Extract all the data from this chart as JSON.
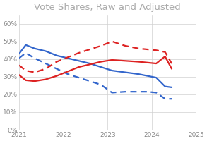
{
  "title": "Vote Shares, Raw and Adjusted",
  "title_fontsize": 9.5,
  "title_color": "#aaaaaa",
  "xlim": [
    2021,
    2025
  ],
  "ylim": [
    0,
    0.65
  ],
  "yticks": [
    0.0,
    0.1,
    0.2,
    0.3,
    0.4,
    0.5,
    0.6
  ],
  "xticks": [
    2021,
    2022,
    2023,
    2024,
    2025
  ],
  "blue_solid_x": [
    2021.0,
    2021.15,
    2021.35,
    2021.6,
    2021.85,
    2022.1,
    2022.35,
    2022.6,
    2022.85,
    2023.1,
    2023.4,
    2023.7,
    2023.9,
    2024.1,
    2024.3,
    2024.45
  ],
  "blue_solid_y": [
    0.43,
    0.48,
    0.46,
    0.445,
    0.42,
    0.405,
    0.39,
    0.375,
    0.355,
    0.335,
    0.325,
    0.315,
    0.305,
    0.295,
    0.245,
    0.24
  ],
  "blue_dashed_x": [
    2021.0,
    2021.15,
    2021.35,
    2021.6,
    2021.85,
    2022.1,
    2022.35,
    2022.6,
    2022.85,
    2023.1,
    2023.4,
    2023.7,
    2023.9,
    2024.1,
    2024.3,
    2024.45
  ],
  "blue_dashed_y": [
    0.405,
    0.435,
    0.405,
    0.375,
    0.345,
    0.315,
    0.295,
    0.275,
    0.255,
    0.21,
    0.215,
    0.215,
    0.215,
    0.21,
    0.175,
    0.175
  ],
  "red_solid_x": [
    2021.0,
    2021.15,
    2021.35,
    2021.6,
    2021.85,
    2022.1,
    2022.35,
    2022.6,
    2022.85,
    2023.1,
    2023.4,
    2023.7,
    2023.9,
    2024.1,
    2024.3,
    2024.45
  ],
  "red_solid_y": [
    0.31,
    0.28,
    0.275,
    0.285,
    0.305,
    0.33,
    0.355,
    0.37,
    0.385,
    0.395,
    0.39,
    0.385,
    0.38,
    0.375,
    0.415,
    0.345
  ],
  "red_dashed_x": [
    2021.0,
    2021.15,
    2021.35,
    2021.6,
    2021.85,
    2022.1,
    2022.35,
    2022.6,
    2022.85,
    2023.1,
    2023.4,
    2023.7,
    2023.9,
    2024.1,
    2024.3,
    2024.45
  ],
  "red_dashed_y": [
    0.365,
    0.335,
    0.325,
    0.345,
    0.385,
    0.41,
    0.435,
    0.455,
    0.475,
    0.5,
    0.475,
    0.46,
    0.455,
    0.45,
    0.44,
    0.375
  ],
  "blue_color": "#3366cc",
  "red_color": "#dd2222",
  "line_width": 1.6,
  "bg_color": "#ffffff",
  "plot_bg": "#ffffff",
  "grid_color": "#d0d0d0"
}
